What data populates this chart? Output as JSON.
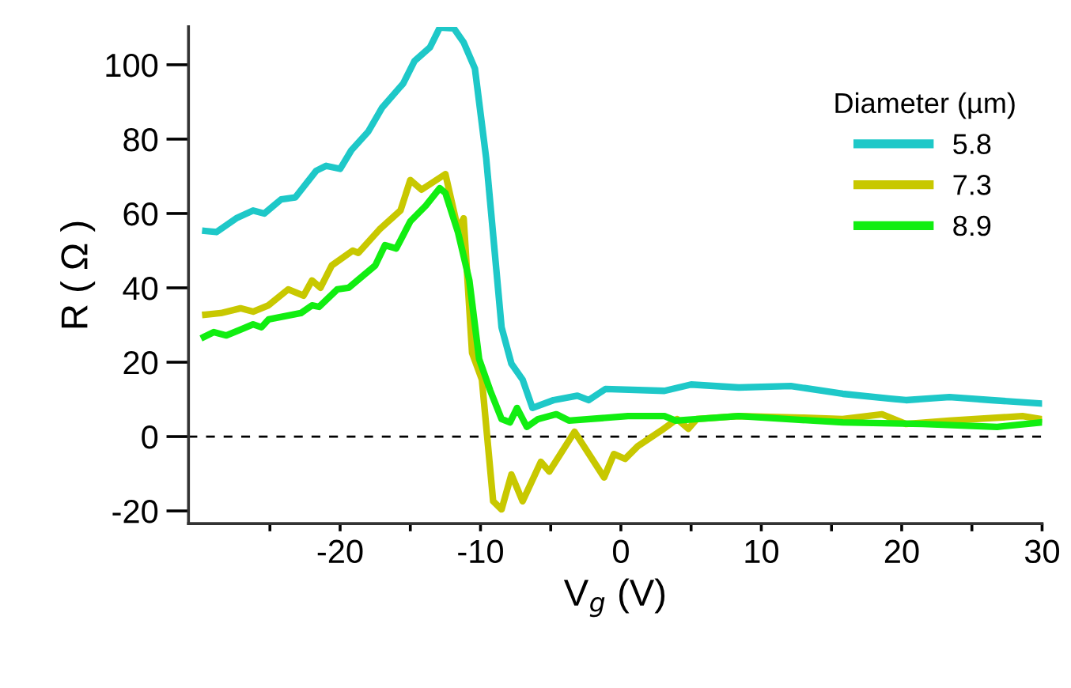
{
  "chart_data": {
    "type": "line",
    "xlabel": "V$_{g}$ (V)",
    "ylabel": "R ( Ω )",
    "legend_title": "Diameter (µm)",
    "legend": "top right",
    "grid": false,
    "marker": "none",
    "line_style": "solid",
    "xlim": [
      -30.8,
      30
    ],
    "ylim": [
      -23.4,
      110.2
    ],
    "xticks": [
      {
        "value": -25,
        "label": null
      },
      -20,
      {
        "value": -15,
        "label": null
      },
      -10,
      {
        "value": -5,
        "label": null
      },
      0,
      {
        "value": 5,
        "label": null
      },
      10,
      {
        "value": 15,
        "label": null
      },
      20,
      {
        "value": 25,
        "label": null
      },
      30
    ],
    "yticks": [
      -20,
      0,
      20,
      40,
      60,
      80,
      100
    ],
    "ref_lines": [
      {
        "axis": "y",
        "value": 0,
        "color": "#000000",
        "line_style": "dashed"
      }
    ],
    "series": [
      {
        "name": "5.8",
        "color": "#1ec8c8",
        "x": [
          -29.6,
          -28.8,
          -27.4,
          -26.2,
          -25.4,
          -24.2,
          -23.2,
          -21.7,
          -21,
          -20,
          -19.2,
          -18,
          -17,
          -15.5,
          -14.7,
          -13.6,
          -12.9,
          -11.9,
          -11.2,
          -10.4,
          -9.6,
          -8.5,
          -7.8,
          -7,
          -6.3,
          -4.8,
          -3.1,
          -2.3,
          -1.1,
          3.1,
          5,
          8.4,
          12.1,
          15.8,
          19.2,
          20.3,
          23.4,
          26.4,
          29.9
        ],
        "values": [
          55.3,
          55,
          58.7,
          60.8,
          60,
          63.8,
          64.3,
          71.5,
          72.8,
          72,
          77,
          82,
          88.5,
          95,
          101,
          104.7,
          110,
          109.8,
          106,
          99,
          75,
          29.4,
          19.6,
          15.3,
          7.7,
          9.8,
          11,
          9.8,
          12.8,
          12.3,
          14,
          13.2,
          13.6,
          11.5,
          10.2,
          9.8,
          10.6,
          9.8,
          8.9
        ]
      },
      {
        "name": "7.3",
        "color": "#c8c800",
        "x": [
          -29.6,
          -28.5,
          -27.1,
          -26.2,
          -25.1,
          -23.7,
          -22.6,
          -22,
          -21.4,
          -20.6,
          -19.1,
          -18.7,
          -17.2,
          -15.7,
          -15,
          -14.2,
          -12.5,
          -11.6,
          -11.2,
          -10.6,
          -9.9,
          -9.1,
          -8.5,
          -7.8,
          -7,
          -5.7,
          -5.1,
          -3.3,
          -1.2,
          -0.5,
          0.3,
          1.2,
          2.9,
          4,
          4.8,
          5.4,
          8.4,
          12.9,
          15.8,
          18.6,
          20.3,
          23.4,
          28.6,
          29.9
        ],
        "values": [
          32.8,
          33.2,
          34.5,
          33.6,
          35.3,
          39.6,
          37.9,
          42,
          40,
          46,
          50,
          49.4,
          55.7,
          60.8,
          69,
          66.4,
          70.6,
          55.7,
          58.7,
          22.5,
          15.3,
          -17.4,
          -19.6,
          -10.2,
          -17.4,
          -6.8,
          -9.4,
          1.3,
          -11,
          -4.7,
          -6,
          -2.6,
          1.7,
          4.7,
          2.1,
          4.7,
          5.5,
          5.1,
          4.7,
          6,
          3.4,
          4.3,
          5.5,
          4.7
        ]
      },
      {
        "name": "8.9",
        "color": "#11ee11",
        "x": [
          -29.7,
          -29,
          -28.1,
          -27,
          -26.2,
          -25.6,
          -25.1,
          -22.8,
          -22,
          -21.5,
          -20.2,
          -19.4,
          -17.5,
          -16.8,
          -16,
          -15,
          -13.9,
          -12.9,
          -12.5,
          -11.6,
          -10.8,
          -10.1,
          -9.3,
          -8.5,
          -7.9,
          -7.4,
          -6.7,
          -5.9,
          -4.6,
          -3.7,
          0.5,
          3.1,
          3.9,
          8.4,
          15.8,
          21.5,
          26.8,
          29.9
        ],
        "values": [
          26.8,
          28.1,
          27.2,
          28.9,
          30.2,
          29.4,
          31.5,
          33.2,
          35.3,
          34.9,
          39.6,
          40,
          46,
          51.5,
          50.6,
          57.9,
          62.1,
          66.8,
          65.5,
          54.9,
          42.1,
          20.9,
          12.3,
          4.7,
          3.8,
          7.7,
          2.6,
          4.7,
          6,
          4.3,
          5.5,
          5.5,
          4.3,
          5.5,
          3.8,
          3.4,
          2.6,
          3.8
        ]
      }
    ]
  }
}
